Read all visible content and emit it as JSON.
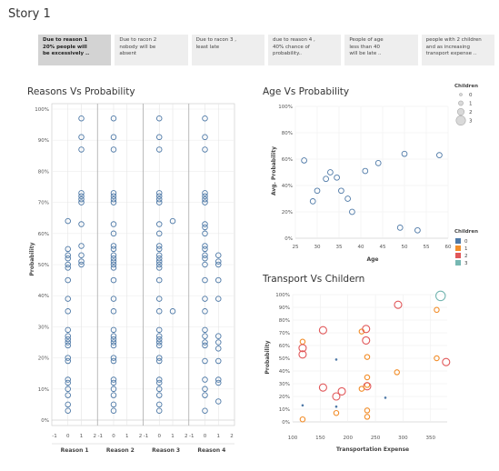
{
  "story": {
    "title": "Story 1"
  },
  "nav": {
    "items": [
      {
        "label": "Due to reason 1\n20% people will\nbe excessively ..",
        "active": true
      },
      {
        "label": "Due to racon 2\nnobody will be\nabsent",
        "active": false
      },
      {
        "label": "Due to racon 3 ,\nleast late",
        "active": false
      },
      {
        "label": "due to reason 4 ,\n40% chance of\nprobability..",
        "active": false
      },
      {
        "label": "People of age\nless than 40\nwill be late ..",
        "active": false
      },
      {
        "label": "people with 2 children\nand as increasing\ntransport expense ..",
        "active": false
      }
    ]
  },
  "colors": {
    "reasons_point": "#4e79a7",
    "age_point": "#4e79a7",
    "child_0": "#4e79a7",
    "child_1": "#f28e2b",
    "child_2": "#e15759",
    "child_3": "#76b7b2"
  },
  "chart_data": [
    {
      "type": "scatter",
      "title": "Reasons Vs Probability",
      "xlabel": "",
      "ylabel": "Probability",
      "ylim": [
        0,
        1
      ],
      "yticks": [
        "0%",
        "10%",
        "20%",
        "30%",
        "40%",
        "50%",
        "60%",
        "70%",
        "80%",
        "90%",
        "100%"
      ],
      "xticks": [
        "-1",
        "0",
        "1",
        "2"
      ],
      "grid": true,
      "panels": [
        {
          "name": "Reason 1",
          "points": [
            {
              "x": 0,
              "y": [
                0.03,
                0.05,
                0.08,
                0.1,
                0.12,
                0.13,
                0.19,
                0.2,
                0.24,
                0.25,
                0.26,
                0.27,
                0.29,
                0.35,
                0.39,
                0.45,
                0.49,
                0.5,
                0.52,
                0.53,
                0.55,
                0.64
              ]
            },
            {
              "x": 1,
              "y": [
                0.5,
                0.51,
                0.53,
                0.56,
                0.63,
                0.7,
                0.71,
                0.72,
                0.73,
                0.87,
                0.91,
                0.97
              ]
            }
          ]
        },
        {
          "name": "Reason 2",
          "points": [
            {
              "x": 0,
              "y": [
                0.03,
                0.05,
                0.08,
                0.1,
                0.12,
                0.13,
                0.19,
                0.2,
                0.24,
                0.25,
                0.26,
                0.27,
                0.29,
                0.35,
                0.39,
                0.45,
                0.49,
                0.5,
                0.51,
                0.52,
                0.53,
                0.55,
                0.56,
                0.6,
                0.63,
                0.7,
                0.71,
                0.72,
                0.73,
                0.87,
                0.91,
                0.97
              ]
            }
          ]
        },
        {
          "name": "Reason 3",
          "points": [
            {
              "x": 0,
              "y": [
                0.03,
                0.05,
                0.08,
                0.1,
                0.12,
                0.13,
                0.19,
                0.2,
                0.24,
                0.25,
                0.26,
                0.27,
                0.29,
                0.35,
                0.39,
                0.45,
                0.49,
                0.5,
                0.51,
                0.52,
                0.53,
                0.55,
                0.56,
                0.6,
                0.63,
                0.7,
                0.71,
                0.72,
                0.73,
                0.87,
                0.91,
                0.97
              ]
            },
            {
              "x": 1,
              "y": [
                0.35,
                0.64
              ]
            }
          ]
        },
        {
          "name": "Reason 4",
          "points": [
            {
              "x": 0,
              "y": [
                0.03,
                0.08,
                0.1,
                0.13,
                0.19,
                0.24,
                0.25,
                0.27,
                0.29,
                0.35,
                0.39,
                0.45,
                0.5,
                0.52,
                0.53,
                0.55,
                0.56,
                0.6,
                0.62,
                0.63,
                0.7,
                0.71,
                0.72,
                0.73,
                0.87,
                0.91,
                0.97
              ]
            },
            {
              "x": 1,
              "y": [
                0.06,
                0.12,
                0.13,
                0.19,
                0.23,
                0.25,
                0.27,
                0.39,
                0.45,
                0.5,
                0.51,
                0.53
              ]
            }
          ]
        }
      ]
    },
    {
      "type": "scatter",
      "title": "Age Vs Probability",
      "xlabel": "Age",
      "ylabel": "Avg. Probability",
      "xlim": [
        25,
        60
      ],
      "ylim": [
        0,
        1
      ],
      "xticks": [
        "25",
        "30",
        "35",
        "40",
        "45",
        "50",
        "55",
        "60"
      ],
      "yticks": [
        "0%",
        "20%",
        "40%",
        "60%",
        "80%",
        "100%"
      ],
      "grid": true,
      "points": [
        {
          "x": 27,
          "y": 0.59
        },
        {
          "x": 29,
          "y": 0.28
        },
        {
          "x": 30,
          "y": 0.36
        },
        {
          "x": 32,
          "y": 0.45
        },
        {
          "x": 33,
          "y": 0.5
        },
        {
          "x": 34.5,
          "y": 0.46
        },
        {
          "x": 35.5,
          "y": 0.36
        },
        {
          "x": 37,
          "y": 0.3
        },
        {
          "x": 38,
          "y": 0.2
        },
        {
          "x": 41,
          "y": 0.51
        },
        {
          "x": 44,
          "y": 0.57
        },
        {
          "x": 49,
          "y": 0.08
        },
        {
          "x": 50,
          "y": 0.64
        },
        {
          "x": 53,
          "y": 0.06
        },
        {
          "x": 58,
          "y": 0.63
        }
      ],
      "legend_size": {
        "title": "Children",
        "items": [
          "0",
          "1",
          "2",
          "3"
        ],
        "placement": "top-right"
      },
      "legend_color": {
        "title": "Children",
        "items": [
          "0",
          "1",
          "2",
          "3"
        ],
        "placement": "right"
      }
    },
    {
      "type": "scatter",
      "title": "Transport Vs Childern",
      "xlabel": "Transportation Expense",
      "ylabel": "Probability",
      "xlim": [
        100,
        380
      ],
      "ylim": [
        0,
        1
      ],
      "xticks": [
        "100",
        "150",
        "200",
        "250",
        "300",
        "350"
      ],
      "yticks": [
        "0%",
        "10%",
        "20%",
        "30%",
        "40%",
        "50%",
        "60%",
        "70%",
        "80%",
        "90%",
        "100%"
      ],
      "grid": true,
      "points": [
        {
          "x": 118,
          "y": 0.02,
          "c": 1
        },
        {
          "x": 118,
          "y": 0.63,
          "c": 1
        },
        {
          "x": 118,
          "y": 0.58,
          "c": 2
        },
        {
          "x": 118,
          "y": 0.53,
          "c": 2
        },
        {
          "x": 118,
          "y": 0.13,
          "c": 0
        },
        {
          "x": 155,
          "y": 0.72,
          "c": 2
        },
        {
          "x": 155,
          "y": 0.27,
          "c": 2
        },
        {
          "x": 179,
          "y": 0.49,
          "c": 0
        },
        {
          "x": 179,
          "y": 0.12,
          "c": 0
        },
        {
          "x": 179,
          "y": 0.07,
          "c": 1
        },
        {
          "x": 179,
          "y": 0.2,
          "c": 2
        },
        {
          "x": 189,
          "y": 0.24,
          "c": 2
        },
        {
          "x": 225,
          "y": 0.71,
          "c": 1
        },
        {
          "x": 233,
          "y": 0.73,
          "c": 2
        },
        {
          "x": 233,
          "y": 0.64,
          "c": 2
        },
        {
          "x": 235,
          "y": 0.51,
          "c": 1
        },
        {
          "x": 235,
          "y": 0.35,
          "c": 1
        },
        {
          "x": 235,
          "y": 0.29,
          "c": 1
        },
        {
          "x": 235,
          "y": 0.28,
          "c": 2
        },
        {
          "x": 225,
          "y": 0.26,
          "c": 1
        },
        {
          "x": 235,
          "y": 0.09,
          "c": 1
        },
        {
          "x": 235,
          "y": 0.04,
          "c": 1
        },
        {
          "x": 268,
          "y": 0.19,
          "c": 0
        },
        {
          "x": 289,
          "y": 0.39,
          "c": 1
        },
        {
          "x": 291,
          "y": 0.92,
          "c": 2
        },
        {
          "x": 361,
          "y": 0.88,
          "c": 1
        },
        {
          "x": 361,
          "y": 0.5,
          "c": 1
        },
        {
          "x": 368,
          "y": 0.99,
          "c": 3
        },
        {
          "x": 378,
          "y": 0.47,
          "c": 2
        }
      ]
    }
  ]
}
